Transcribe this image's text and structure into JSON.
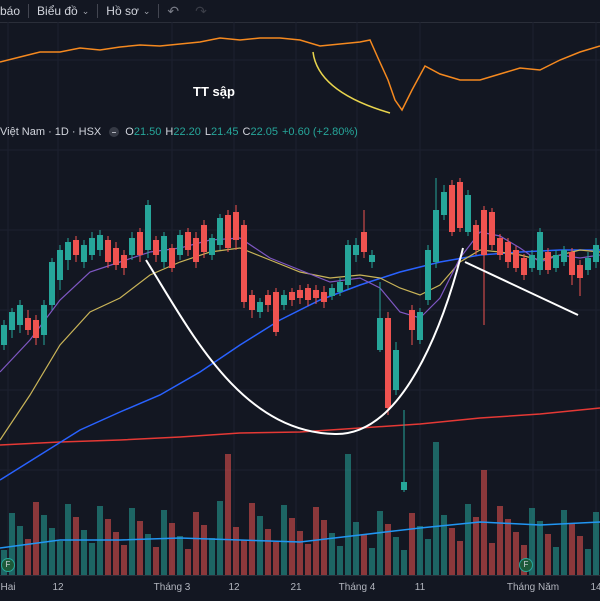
{
  "toolbar": {
    "item1_label": "báo",
    "item2_label": "Biểu đồ",
    "item3_label": "Hồ sơ",
    "undo_icon": "undo-icon",
    "redo_icon": "redo-icon"
  },
  "annotation": {
    "text": "TT sập"
  },
  "legend": {
    "symbol": "Việt Nam · 1D · HSX",
    "o_label": "O",
    "o_value": "21.50",
    "h_label": "H",
    "h_value": "22.20",
    "l_label": "L",
    "l_value": "21.45",
    "c_label": "C",
    "c_value": "22.05",
    "change": "+0.60 (+2.80%)"
  },
  "xaxis": {
    "labels": [
      "Hai",
      "12",
      "Tháng 3",
      "12",
      "21",
      "Tháng 4",
      "11",
      "Tháng Năm",
      "14"
    ]
  },
  "badges": [
    "F",
    "F"
  ],
  "colors": {
    "background": "#131722",
    "up": "#26a69a",
    "down": "#ef5350",
    "ma_blue": "#2962ff",
    "ma_purple": "#7e57c2",
    "ma_yellow": "#c9b458",
    "ma_red": "#e53935",
    "indicator_orange": "#f5891f"
  },
  "chart_data": {
    "type": "candlestick",
    "interval": "1D",
    "last_bar": {
      "open": 21.5,
      "high": 22.2,
      "low": 21.45,
      "close": 22.05,
      "change": 0.6,
      "change_pct": 2.8
    },
    "indicators": [
      "MA (blue)",
      "MA (purple)",
      "MA (yellow)",
      "MA (red)",
      "volume",
      "oscillator (orange)"
    ]
  }
}
